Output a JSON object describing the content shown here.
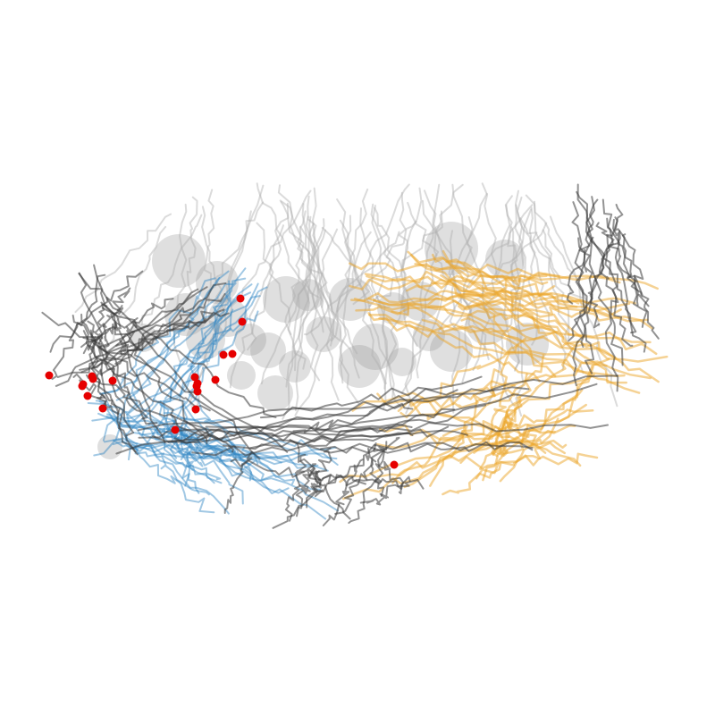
{
  "figure": {
    "background": "#ffffff",
    "colors": {
      "light_traces": "#b0b0b0",
      "dark_traces": "#3a3a3a",
      "blue_traces": "#2f86c4",
      "orange_traces": "#eba52a",
      "soma_fill": "#8c8c8c",
      "synapse_marker": "#e60000"
    },
    "groups": [
      {
        "key": "light",
        "color_key": "light_traces",
        "count": 70
      },
      {
        "key": "dark",
        "color_key": "dark_traces",
        "count": 75
      },
      {
        "key": "blue",
        "color_key": "blue_traces",
        "count": 45
      },
      {
        "key": "orange",
        "color_key": "orange_traces",
        "count": 55
      }
    ],
    "soma_count": 27,
    "synapse_count": 20
  }
}
